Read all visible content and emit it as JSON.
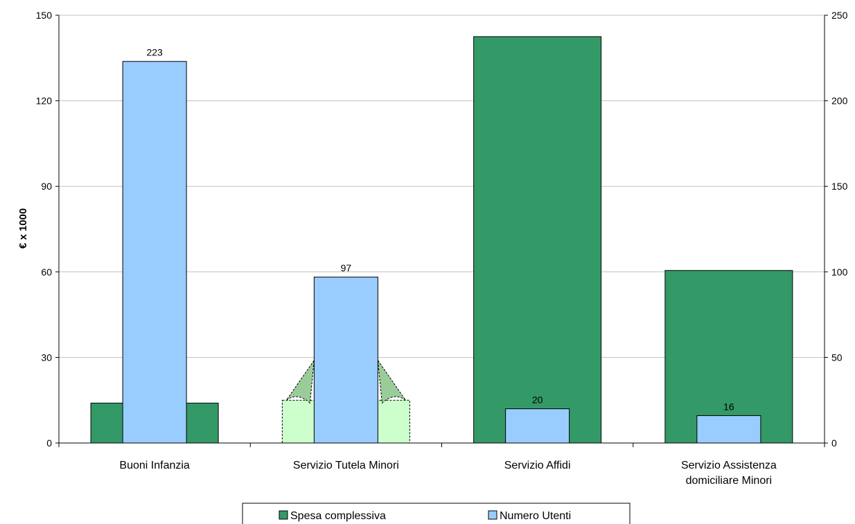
{
  "chart_data": {
    "type": "bar",
    "categories": [
      "Buoni Infanzia",
      "Servizio Tutela Minori",
      "Servizio Affidi",
      "Servizio Assistenza domiciliare Minori"
    ],
    "category_lines": [
      [
        "Buoni Infanzia"
      ],
      [
        "Servizio Tutela Minori"
      ],
      [
        "Servizio Affidi"
      ],
      [
        "Servizio Assistenza",
        "domiciliare Minori"
      ]
    ],
    "series": [
      {
        "name": "Spesa complessiva",
        "axis": "left",
        "color": "#339966",
        "values": [
          14,
          15,
          142.5,
          60.5
        ]
      },
      {
        "name": "Numero Utenti",
        "axis": "right",
        "color": "#99CCFF",
        "values": [
          223,
          97,
          20,
          16
        ],
        "data_labels": [
          "223",
          "97",
          "20",
          "16"
        ]
      }
    ],
    "ylabel": "€ x 1000",
    "ylim": [
      0,
      150
    ],
    "yticks": [
      0,
      30,
      60,
      90,
      120,
      150
    ],
    "y2lim": [
      0,
      250
    ],
    "y2ticks": [
      0,
      50,
      100,
      150,
      200,
      250
    ],
    "grid": true,
    "legend_position": "bottom",
    "legend": [
      "Spesa complessiva",
      "Numero Utenti"
    ]
  }
}
